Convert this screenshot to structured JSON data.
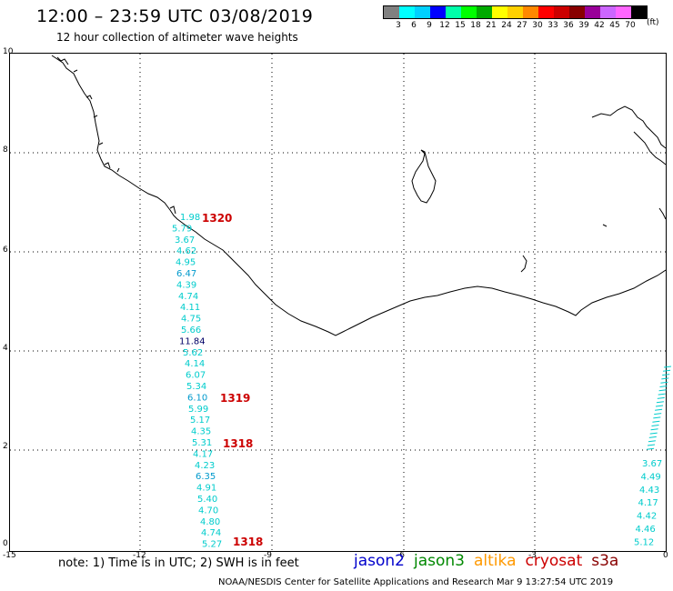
{
  "header": {
    "title": "12:00 – 23:59 UTC 03/08/2019",
    "subtitle": "12 hour collection of altimeter wave heights"
  },
  "legend": {
    "colors": [
      "#808080",
      "#00ffff",
      "#00d0ff",
      "#0000ff",
      "#00ffaa",
      "#00ff00",
      "#00aa00",
      "#ffff00",
      "#ffd000",
      "#ff8800",
      "#ff0000",
      "#cc0000",
      "#880000",
      "#990099",
      "#cc66ff",
      "#ff66ff",
      "#000000"
    ],
    "ticks": [
      "3",
      "6",
      "9",
      "12",
      "15",
      "18",
      "21",
      "24",
      "27",
      "30",
      "33",
      "36",
      "39",
      "42",
      "45",
      "70"
    ],
    "unit": "(ft)"
  },
  "axes": {
    "x_ticks": [
      "-15",
      "-12",
      "-9",
      "-6",
      "-3",
      "0"
    ],
    "y_ticks": [
      "0",
      "2",
      "4",
      "6",
      "8",
      "10"
    ]
  },
  "track_left": {
    "values": [
      "1.98",
      "5.79",
      "3.67",
      "4.62",
      "4.95",
      "6.47",
      "4.39",
      "4.74",
      "4.11",
      "4.75",
      "5.66",
      "11.84",
      "5.62",
      "4.14",
      "6.07",
      "5.34",
      "6.10",
      "5.99",
      "5.17",
      "4.35",
      "5.31",
      "4.17",
      "4.23",
      "6.35",
      "4.91",
      "5.40",
      "4.70",
      "4.80",
      "4.74",
      "5.27"
    ],
    "colors": [
      "#00cccc",
      "#00cccc",
      "#00cccc",
      "#00cccc",
      "#00cccc",
      "#0099cc",
      "#00cccc",
      "#00cccc",
      "#00cccc",
      "#00cccc",
      "#00cccc",
      "#000066",
      "#00cccc",
      "#00cccc",
      "#00cccc",
      "#00cccc",
      "#0099cc",
      "#00cccc",
      "#00cccc",
      "#00cccc",
      "#00cccc",
      "#00cccc",
      "#00cccc",
      "#0099cc",
      "#00cccc",
      "#00cccc",
      "#00cccc",
      "#00cccc",
      "#00cccc",
      "#00cccc"
    ]
  },
  "track_right": {
    "values": [
      "3.67",
      "4.49",
      "4.43",
      "4.17",
      "4.42",
      "4.46",
      "5.12"
    ]
  },
  "times": {
    "t1": "1320",
    "t2": "1319",
    "t3": "1318",
    "t4": "1318"
  },
  "footer": {
    "note": "note:  1) Time is in UTC;  2) SWH is in feet",
    "missions": [
      {
        "name": "jason2",
        "color": "#0000cc"
      },
      {
        "name": "jason3",
        "color": "#008800"
      },
      {
        "name": "altika",
        "color": "#ff9900"
      },
      {
        "name": "cryosat",
        "color": "#cc0000"
      },
      {
        "name": "s3a",
        "color": "#880000"
      }
    ],
    "credit": "NOAA/NESDIS Center for Satellite Applications and Research    Mar  9 13:27:54 UTC 2019"
  }
}
